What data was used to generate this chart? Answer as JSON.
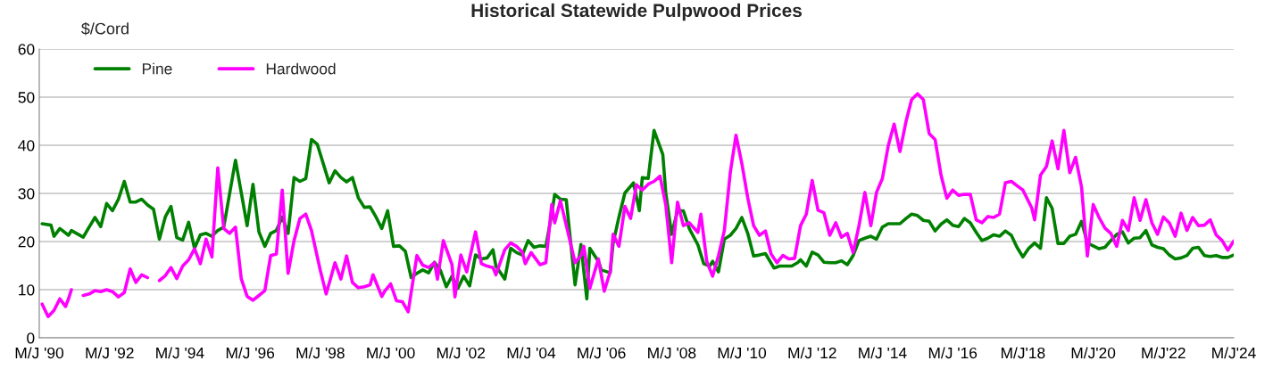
{
  "chart_data": {
    "type": "line",
    "title": "Historical Statewide Pulpwood Prices",
    "ylabel": "$/Cord",
    "xlim": [
      "1990-06",
      "2024-06"
    ],
    "ylim": [
      0,
      60
    ],
    "yticks": [
      0,
      10,
      20,
      30,
      40,
      50,
      60
    ],
    "xticks": [
      {
        "value": "1990-06",
        "label": "M/J '90"
      },
      {
        "value": "1992-06",
        "label": "M/J '92"
      },
      {
        "value": "1994-06",
        "label": "M/J '94"
      },
      {
        "value": "1996-06",
        "label": "M/J '96"
      },
      {
        "value": "1998-06",
        "label": "M/J '98"
      },
      {
        "value": "2000-06",
        "label": "M/J '00"
      },
      {
        "value": "2002-06",
        "label": "M/J '02"
      },
      {
        "value": "2004-06",
        "label": "M/J '04"
      },
      {
        "value": "2006-06",
        "label": "M/J '06"
      },
      {
        "value": "2008-06",
        "label": "M/J '08"
      },
      {
        "value": "2010-06",
        "label": "M/J '10"
      },
      {
        "value": "2012-06",
        "label": "M/J '12"
      },
      {
        "value": "2014-06",
        "label": "M/J '14"
      },
      {
        "value": "2016-06",
        "label": "M/J '16"
      },
      {
        "value": "2018-06",
        "label": "M/J'18"
      },
      {
        "value": "2020-06",
        "label": "M/J'20"
      },
      {
        "value": "2022-06",
        "label": "M/J'22"
      },
      {
        "value": "2024-06",
        "label": "M/J'24"
      }
    ],
    "grid": "y",
    "legend": "top left",
    "marker": "none",
    "line_style": "solid",
    "series": [
      {
        "name": "Pine",
        "color": "#008000",
        "x": [
          "1990-07",
          "1990-10",
          "1990-11",
          "1991-01",
          "1991-04",
          "1991-05",
          "1991-09",
          "1991-11",
          "1992-01",
          "1992-03",
          "1992-05",
          "1992-07",
          "1992-09",
          "1992-11",
          "1993-01",
          "1993-03",
          "1993-05",
          "1993-07",
          "1993-09",
          "1993-11",
          "1994-01",
          "1994-03",
          "1994-05",
          "1994-07",
          "1994-09",
          "1994-11",
          "1995-01",
          "1995-03",
          "1995-05",
          "1995-07",
          "1995-09",
          "1996-01",
          "1996-05",
          "1996-07",
          "1996-09",
          "1996-11",
          "1997-01",
          "1997-03",
          "1997-05",
          "1997-07",
          "1997-09",
          "1997-11",
          "1998-01",
          "1998-03",
          "1998-05",
          "1998-09",
          "1998-11",
          "1999-01",
          "1999-03",
          "1999-05",
          "1999-07",
          "1999-09",
          "1999-11",
          "2000-01",
          "2000-03",
          "2000-05",
          "2000-07",
          "2000-09",
          "2000-11",
          "2001-01",
          "2001-03",
          "2001-05",
          "2001-07",
          "2001-09",
          "2001-11",
          "2002-01",
          "2002-03",
          "2002-05",
          "2002-07",
          "2002-09",
          "2002-11",
          "2003-01",
          "2003-03",
          "2003-05",
          "2003-06",
          "2003-09",
          "2003-11",
          "2004-01",
          "2004-03",
          "2004-05",
          "2004-07",
          "2004-09",
          "2004-11",
          "2005-01",
          "2005-02",
          "2005-04",
          "2005-06",
          "2005-09",
          "2005-11",
          "2006-01",
          "2006-02",
          "2006-05",
          "2006-06",
          "2006-09",
          "2006-10",
          "2006-12",
          "2007-02",
          "2007-05",
          "2007-07",
          "2007-08",
          "2007-10",
          "2007-12",
          "2008-03",
          "2008-04",
          "2008-06",
          "2008-08",
          "2008-10",
          "2008-12",
          "2009-03",
          "2009-05",
          "2009-07",
          "2009-08",
          "2009-10",
          "2009-12",
          "2010-02",
          "2010-04",
          "2010-06",
          "2010-08",
          "2010-10",
          "2010-12",
          "2011-02",
          "2011-05",
          "2011-07",
          "2011-09",
          "2011-11",
          "2012-01",
          "2012-02",
          "2012-04",
          "2012-06",
          "2012-08",
          "2012-10",
          "2012-12",
          "2013-02",
          "2013-04",
          "2013-06",
          "2013-08",
          "2013-10",
          "2013-12",
          "2014-02",
          "2014-04",
          "2014-06",
          "2014-08",
          "2014-12",
          "2015-02",
          "2015-04",
          "2015-06",
          "2015-08",
          "2015-10",
          "2015-12",
          "2016-02",
          "2016-04",
          "2016-06",
          "2016-08",
          "2016-10",
          "2016-12",
          "2017-02",
          "2017-04",
          "2017-06",
          "2017-08",
          "2017-10",
          "2017-12",
          "2018-02",
          "2018-04",
          "2018-06",
          "2018-08",
          "2018-10",
          "2018-12",
          "2019-02",
          "2019-04",
          "2019-06",
          "2019-08",
          "2019-10",
          "2019-12",
          "2020-02",
          "2020-04",
          "2020-06",
          "2020-08",
          "2020-10",
          "2020-12",
          "2021-02",
          "2021-04",
          "2021-06",
          "2021-08",
          "2021-10",
          "2021-12",
          "2022-02",
          "2022-04",
          "2022-06",
          "2022-08",
          "2022-10",
          "2022-12",
          "2023-02",
          "2023-04",
          "2023-06",
          "2023-08",
          "2023-10",
          "2023-12",
          "2024-02",
          "2024-04",
          "2024-06"
        ],
        "values": [
          23.7,
          23.4,
          21.1,
          22.7,
          21.3,
          22.3,
          20.9,
          23.0,
          25.0,
          23.1,
          27.9,
          26.4,
          28.8,
          32.5,
          28.2,
          28.2,
          28.8,
          27.6,
          26.7,
          20.5,
          25.1,
          27.3,
          20.8,
          20.3,
          24.0,
          18.6,
          21.4,
          21.7,
          21.1,
          22.3,
          23.0,
          36.9,
          23.3,
          31.9,
          22.0,
          19.0,
          21.7,
          22.3,
          25.1,
          21.7,
          33.3,
          32.5,
          33.1,
          41.2,
          40.2,
          32.2,
          34.7,
          33.3,
          32.4,
          33.3,
          29.1,
          27.1,
          27.2,
          25.1,
          22.7,
          26.4,
          19.0,
          19.1,
          18.0,
          12.5,
          13.4,
          14.1,
          13.5,
          15.7,
          14.0,
          10.6,
          12.8,
          10.3,
          12.8,
          10.8,
          17.2,
          16.4,
          16.6,
          18.3,
          14.9,
          12.2,
          18.6,
          17.7,
          17.2,
          20.2,
          18.8,
          19.1,
          19.0,
          25.7,
          29.8,
          28.8,
          28.7,
          11.0,
          19.4,
          8.1,
          18.6,
          15.9,
          14.1,
          13.5,
          19.6,
          25.1,
          30.1,
          32.2,
          26.4,
          33.3,
          33.1,
          43.1,
          38.1,
          30.1,
          21.5,
          26.4,
          26.4,
          22.7,
          19.3,
          15.4,
          14.9,
          15.9,
          13.7,
          20.5,
          21.3,
          22.7,
          25.0,
          21.7,
          17.0,
          17.2,
          17.5,
          14.5,
          14.9,
          14.9,
          14.9,
          15.6,
          16.2,
          14.9,
          17.8,
          17.2,
          15.7,
          15.6,
          15.6,
          16.0,
          15.2,
          17.1,
          20.2,
          20.7,
          21.1,
          20.5,
          23.0,
          23.7,
          23.7,
          24.8,
          25.7,
          25.4,
          24.4,
          24.2,
          22.2,
          23.6,
          24.5,
          23.4,
          23.1,
          24.8,
          23.9,
          21.9,
          20.2,
          20.7,
          21.4,
          21.1,
          22.2,
          21.3,
          18.8,
          16.8,
          18.6,
          19.7,
          18.6,
          29.1,
          26.9,
          19.6,
          19.6,
          21.1,
          21.5,
          24.2,
          19.7,
          19.1,
          18.5,
          18.8,
          20.2,
          21.5,
          22.0,
          19.7,
          20.7,
          20.8,
          22.3,
          19.3,
          18.8,
          18.5,
          17.2,
          16.4,
          16.6,
          17.1,
          18.6,
          18.8,
          17.1,
          16.9,
          17.1,
          16.7,
          16.7,
          17.2
        ]
      },
      {
        "name": "Hardwood",
        "color": "#ff00ff",
        "x": [
          "1990-07",
          "1990-09",
          "1990-11",
          "1991-01",
          "1991-03",
          "1991-04",
          "1991-05",
          "1991-07",
          "1991-09",
          "1991-11",
          "1992-01",
          "1992-03",
          "1992-05",
          "1992-07",
          "1992-09",
          "1992-11",
          "1993-01",
          "1993-03",
          "1993-05",
          "1993-07",
          "1993-09",
          "1993-11",
          "1994-01",
          "1994-03",
          "1994-05",
          "1994-07",
          "1994-09",
          "1994-11",
          "1995-01",
          "1995-03",
          "1995-05",
          "1995-07",
          "1995-09",
          "1995-11",
          "1996-01",
          "1996-03",
          "1996-05",
          "1996-07",
          "1996-09",
          "1996-11",
          "1997-01",
          "1997-03",
          "1997-05",
          "1997-07",
          "1997-09",
          "1997-11",
          "1998-01",
          "1998-03",
          "1998-06",
          "1998-08",
          "1998-11",
          "1999-01",
          "1999-03",
          "1999-05",
          "1999-07",
          "1999-09",
          "1999-11",
          "1999-12",
          "2000-03",
          "2000-04",
          "2000-06",
          "2000-08",
          "2000-10",
          "2000-12",
          "2001-03",
          "2001-05",
          "2001-07",
          "2001-09",
          "2001-10",
          "2001-12",
          "2002-03",
          "2002-04",
          "2002-06",
          "2002-08",
          "2002-11",
          "2003-01",
          "2003-03",
          "2003-05",
          "2003-06",
          "2003-09",
          "2003-11",
          "2004-01",
          "2004-03",
          "2004-04",
          "2004-06",
          "2004-09",
          "2004-11",
          "2005-01",
          "2005-02",
          "2005-04",
          "2005-07",
          "2005-09",
          "2005-11",
          "2005-12",
          "2006-02",
          "2006-05",
          "2006-07",
          "2006-09",
          "2006-10",
          "2006-12",
          "2007-02",
          "2007-04",
          "2007-06",
          "2007-08",
          "2007-10",
          "2007-12",
          "2008-02",
          "2008-04",
          "2008-06",
          "2008-08",
          "2008-10",
          "2008-12",
          "2009-03",
          "2009-04",
          "2009-06",
          "2009-08",
          "2009-10",
          "2009-12",
          "2010-02",
          "2010-04",
          "2010-06",
          "2010-08",
          "2010-10",
          "2010-12",
          "2011-02",
          "2011-04",
          "2011-06",
          "2011-08",
          "2011-10",
          "2011-12",
          "2012-02",
          "2012-04",
          "2012-06",
          "2012-08",
          "2012-10",
          "2012-12",
          "2013-02",
          "2013-04",
          "2013-06",
          "2013-08",
          "2013-10",
          "2013-12",
          "2014-02",
          "2014-04",
          "2014-06",
          "2014-08",
          "2014-10",
          "2014-12",
          "2015-02",
          "2015-04",
          "2015-06",
          "2015-08",
          "2015-10",
          "2015-12",
          "2016-02",
          "2016-04",
          "2016-06",
          "2016-08",
          "2016-10",
          "2016-12",
          "2017-02",
          "2017-04",
          "2017-06",
          "2017-08",
          "2017-10",
          "2017-12",
          "2018-02",
          "2018-04",
          "2018-06",
          "2018-09",
          "2018-10",
          "2018-12",
          "2019-02",
          "2019-04",
          "2019-06",
          "2019-08",
          "2019-10",
          "2019-12",
          "2020-02",
          "2020-04",
          "2020-06",
          "2020-08",
          "2020-10",
          "2020-12",
          "2021-02",
          "2021-04",
          "2021-06",
          "2021-08",
          "2021-10",
          "2021-12",
          "2022-02",
          "2022-04",
          "2022-06",
          "2022-08",
          "2022-10",
          "2022-12",
          "2023-02",
          "2023-04",
          "2023-06",
          "2023-08",
          "2023-10",
          "2023-12",
          "2024-02",
          "2024-04",
          "2024-06"
        ],
        "values": [
          7.0,
          4.4,
          5.7,
          8.1,
          6.5,
          8.1,
          10.0,
          null,
          8.8,
          9.1,
          9.8,
          9.6,
          10.0,
          9.6,
          8.5,
          9.4,
          14.3,
          11.5,
          13.1,
          12.5,
          null,
          11.9,
          12.9,
          14.6,
          12.3,
          14.9,
          16.2,
          18.5,
          15.4,
          20.5,
          16.8,
          35.3,
          22.7,
          21.7,
          23.0,
          12.3,
          8.6,
          7.8,
          8.8,
          9.8,
          17.1,
          17.4,
          30.7,
          13.4,
          20.2,
          24.8,
          25.7,
          22.3,
          14.0,
          9.1,
          15.6,
          12.2,
          17.0,
          11.5,
          10.4,
          10.6,
          11.0,
          13.1,
          8.6,
          9.7,
          11.2,
          7.7,
          7.5,
          5.4,
          17.1,
          15.1,
          14.6,
          15.6,
          12.2,
          20.2,
          15.2,
          8.5,
          17.2,
          13.7,
          22.0,
          15.4,
          14.9,
          14.6,
          13.1,
          18.3,
          19.7,
          19.0,
          17.8,
          15.4,
          17.7,
          15.2,
          15.6,
          27.7,
          23.9,
          28.5,
          20.9,
          15.6,
          17.1,
          19.0,
          10.3,
          16.4,
          9.7,
          13.7,
          21.5,
          19.0,
          27.3,
          24.8,
          31.8,
          30.7,
          31.9,
          32.5,
          33.6,
          27.6,
          15.6,
          28.2,
          23.3,
          23.9,
          21.9,
          25.7,
          15.9,
          12.8,
          17.1,
          22.3,
          34.4,
          42.1,
          36.2,
          29.1,
          23.3,
          21.3,
          22.2,
          17.4,
          15.6,
          17.1,
          16.4,
          16.5,
          23.3,
          25.7,
          32.7,
          26.5,
          26.0,
          21.3,
          23.9,
          20.9,
          21.7,
          17.7,
          23.3,
          30.2,
          23.3,
          30.2,
          33.1,
          39.9,
          44.4,
          38.7,
          44.9,
          49.5,
          50.7,
          49.5,
          42.4,
          41.2,
          33.8,
          29.0,
          30.7,
          29.6,
          29.8,
          29.8,
          24.5,
          23.9,
          25.2,
          25.0,
          25.7,
          32.2,
          32.5,
          31.6,
          30.7,
          27.0,
          24.5,
          33.8,
          35.6,
          40.9,
          35.1,
          43.1,
          34.3,
          37.5,
          31.3,
          17.0,
          27.7,
          25.0,
          22.8,
          21.7,
          19.0,
          24.4,
          22.3,
          29.1,
          24.4,
          28.7,
          23.9,
          21.5,
          25.1,
          23.9,
          21.1,
          25.9,
          22.3,
          25.0,
          23.3,
          23.4,
          24.5,
          21.4,
          20.2,
          18.2,
          20.1
        ]
      }
    ]
  }
}
